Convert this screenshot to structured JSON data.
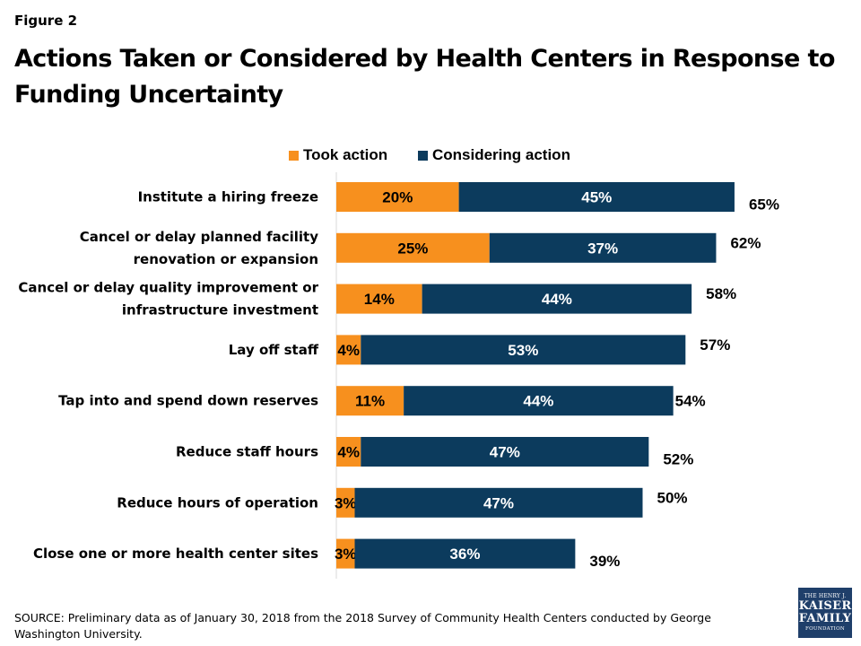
{
  "figure_label": "Figure 2",
  "title": "Actions Taken or Considered by Health Centers in Response to Funding Uncertainty",
  "source": "SOURCE: Preliminary data as of January 30, 2018 from the 2018 Survey of Community Health Centers conducted by George Washington University.",
  "logo": {
    "line1": "THE HENRY J.",
    "line2": "KAISER",
    "line3": "FAMILY",
    "line4": "FOUNDATION"
  },
  "colors": {
    "took_action": "#f7901e",
    "considering_action": "#0c3b5d"
  },
  "chart_data": {
    "type": "bar",
    "orientation": "horizontal",
    "stacked": true,
    "legend_position": "top",
    "categories": [
      "Institute a hiring freeze",
      "Cancel or delay planned facility renovation or expansion",
      "Cancel or delay quality improvement or infrastructure investment",
      "Lay off staff",
      "Tap into and spend down reserves",
      "Reduce staff hours",
      "Reduce hours of operation",
      "Close one or more health center sites"
    ],
    "category_lines": [
      [
        "Institute a hiring freeze"
      ],
      [
        "Cancel or delay planned facility",
        "renovation or expansion"
      ],
      [
        "Cancel or delay quality improvement or",
        "infrastructure investment"
      ],
      [
        "Lay off staff"
      ],
      [
        "Tap into and spend down reserves"
      ],
      [
        "Reduce staff hours"
      ],
      [
        "Reduce hours of operation"
      ],
      [
        "Close one or more health center sites"
      ]
    ],
    "series": [
      {
        "name": "Took action",
        "values": [
          20,
          25,
          14,
          4,
          11,
          4,
          3,
          3
        ]
      },
      {
        "name": "Considering action",
        "values": [
          45,
          37,
          44,
          53,
          44,
          47,
          47,
          36
        ]
      }
    ],
    "totals": [
      65,
      62,
      58,
      57,
      54,
      52,
      50,
      39
    ],
    "value_suffix": "%",
    "xlim": [
      0,
      68
    ],
    "grid": false
  }
}
